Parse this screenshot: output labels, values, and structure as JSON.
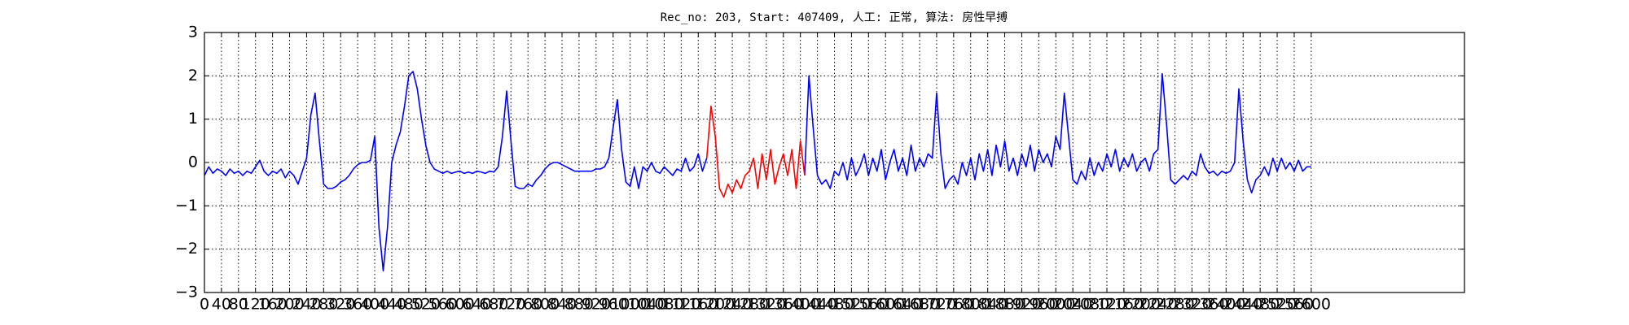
{
  "chart_data": {
    "type": "line",
    "title": "Rec_no: 203, Start: 407409, 人工: 正常, 算法: 房性早搏",
    "x": [
      0,
      10,
      20,
      30,
      40,
      50,
      60,
      70,
      80,
      90,
      100,
      110,
      120,
      130,
      140,
      150,
      160,
      170,
      180,
      190,
      200,
      210,
      220,
      230,
      240,
      250,
      260,
      270,
      280,
      290,
      300,
      310,
      320,
      330,
      340,
      350,
      360,
      370,
      380,
      390,
      400,
      410,
      420,
      430,
      440,
      450,
      460,
      470,
      480,
      490,
      500,
      510,
      520,
      530,
      540,
      550,
      560,
      570,
      580,
      590,
      600,
      610,
      620,
      630,
      640,
      650,
      660,
      670,
      680,
      690,
      700,
      710,
      720,
      730,
      740,
      750,
      760,
      770,
      780,
      790,
      800,
      810,
      820,
      830,
      840,
      850,
      860,
      870,
      880,
      890,
      900,
      910,
      920,
      930,
      940,
      950,
      960,
      970,
      980,
      990,
      1000,
      1010,
      1020,
      1030,
      1040,
      1050,
      1060,
      1070,
      1080,
      1090,
      1100,
      1110,
      1120,
      1130,
      1140,
      1150,
      1160,
      1170,
      1180,
      1190,
      1200,
      1210,
      1220,
      1230,
      1240,
      1250,
      1260,
      1270,
      1280,
      1290,
      1300,
      1310,
      1320,
      1330,
      1340,
      1350,
      1360,
      1370,
      1380,
      1390,
      1400,
      1410,
      1420,
      1430,
      1440,
      1450,
      1460,
      1470,
      1480,
      1490,
      1500,
      1510,
      1520,
      1530,
      1540,
      1550,
      1560,
      1570,
      1580,
      1590,
      1600,
      1610,
      1620,
      1630,
      1640,
      1650,
      1660,
      1670,
      1680,
      1690,
      1700,
      1710,
      1720,
      1730,
      1740,
      1750,
      1760,
      1770,
      1780,
      1790,
      1800,
      1810,
      1820,
      1830,
      1840,
      1850,
      1860,
      1870,
      1880,
      1890,
      1900,
      1910,
      1920,
      1930,
      1940,
      1950,
      1960,
      1970,
      1980,
      1990,
      2000,
      2010,
      2020,
      2030,
      2040,
      2050,
      2060,
      2070,
      2080,
      2090,
      2100,
      2110,
      2120,
      2130,
      2140,
      2150,
      2160,
      2170,
      2180,
      2190,
      2200,
      2210,
      2220,
      2230,
      2240,
      2250,
      2260,
      2270,
      2280,
      2290,
      2300,
      2310,
      2320,
      2330,
      2340,
      2350,
      2360,
      2370,
      2380,
      2390,
      2400,
      2410,
      2420,
      2430,
      2440,
      2450,
      2460,
      2470,
      2480,
      2490,
      2500,
      2510,
      2520,
      2530,
      2540,
      2550,
      2560,
      2570,
      2580,
      2590,
      2600
    ],
    "series": [
      {
        "color": "#0000ff",
        "values": [
          -0.3,
          -0.1,
          -0.25,
          -0.15,
          -0.2,
          -0.3,
          -0.15,
          -0.25,
          -0.2,
          -0.3,
          -0.2,
          -0.25,
          -0.1,
          0.05,
          -0.2,
          -0.3,
          -0.2,
          -0.25,
          -0.15,
          -0.35,
          -0.2,
          -0.3,
          -0.5,
          -0.2,
          0.1,
          1.1,
          1.6,
          0.5,
          -0.5,
          -0.6,
          -0.6,
          -0.55,
          -0.45,
          -0.4,
          -0.3,
          -0.15,
          -0.05,
          0,
          0,
          0.05,
          0.6,
          -1.5,
          -2.5,
          -1.5,
          0,
          0.4,
          0.7,
          1.3,
          2.0,
          2.1,
          1.7,
          1.0,
          0.4,
          0,
          -0.15,
          -0.2,
          -0.25,
          -0.2,
          -0.25,
          -0.22,
          -0.2,
          -0.25,
          -0.22,
          -0.25,
          -0.2,
          -0.22,
          -0.25,
          -0.2,
          -0.22,
          -0.1,
          0.6,
          1.65,
          0.5,
          -0.55,
          -0.6,
          -0.6,
          -0.5,
          -0.55,
          -0.4,
          -0.3,
          -0.15,
          -0.05,
          0,
          0,
          -0.05,
          -0.1,
          -0.15,
          -0.2,
          -0.2,
          -0.2,
          -0.2,
          -0.2,
          -0.15,
          -0.15,
          -0.1,
          0.1,
          0.8,
          1.45,
          0.3,
          -0.45,
          -0.55,
          -0.1,
          -0.6,
          -0.1,
          -0.2,
          0,
          -0.2,
          -0.25,
          -0.1,
          -0.2,
          -0.3,
          -0.15,
          -0.2,
          0.1,
          -0.2,
          -0.1,
          0.2,
          -0.2,
          0.1,
          null,
          null,
          null,
          null,
          null,
          null,
          null,
          null,
          null,
          null,
          null,
          null,
          null,
          null,
          null,
          null,
          null,
          null,
          null,
          null,
          null,
          null,
          -0.3,
          2.0,
          0.8,
          -0.3,
          -0.5,
          -0.4,
          -0.6,
          -0.2,
          -0.3,
          0,
          -0.4,
          0.1,
          -0.3,
          -0.1,
          0.2,
          -0.3,
          0.1,
          -0.2,
          0.3,
          -0.4,
          0,
          0.3,
          -0.2,
          0.1,
          -0.3,
          0.4,
          -0.2,
          0.1,
          -0.1,
          0.2,
          0.1,
          1.6,
          0.2,
          -0.6,
          -0.4,
          -0.3,
          -0.5,
          0,
          -0.3,
          0.1,
          -0.4,
          0.2,
          -0.2,
          0.3,
          -0.3,
          0.4,
          -0.1,
          0.5,
          -0.2,
          0.1,
          -0.3,
          0.2,
          -0.1,
          0.4,
          -0.2,
          0.3,
          0,
          0.2,
          -0.1,
          0.6,
          0.3,
          1.6,
          0.6,
          -0.4,
          -0.5,
          -0.2,
          -0.4,
          0.1,
          -0.3,
          0,
          -0.2,
          0.2,
          -0.1,
          0.3,
          -0.2,
          0.1,
          -0.1,
          0.2,
          -0.2,
          0,
          0.1,
          -0.2,
          0.2,
          0.3,
          2.05,
          0.9,
          -0.4,
          -0.5,
          -0.4,
          -0.3,
          -0.4,
          -0.2,
          -0.3,
          0.2,
          -0.1,
          -0.25,
          -0.2,
          -0.3,
          -0.2,
          -0.25,
          -0.2,
          0,
          1.7,
          0.5,
          -0.4,
          -0.7,
          -0.4,
          -0.3,
          -0.1,
          -0.3,
          0.1,
          -0.2,
          0.1,
          -0.15,
          0,
          -0.2,
          0.05,
          -0.2,
          -0.1,
          -0.1
        ]
      },
      {
        "color": "#ff0000",
        "values": [
          null,
          null,
          null,
          null,
          null,
          null,
          null,
          null,
          null,
          null,
          null,
          null,
          null,
          null,
          null,
          null,
          null,
          null,
          null,
          null,
          null,
          null,
          null,
          null,
          null,
          null,
          null,
          null,
          null,
          null,
          null,
          null,
          null,
          null,
          null,
          null,
          null,
          null,
          null,
          null,
          null,
          null,
          null,
          null,
          null,
          null,
          null,
          null,
          null,
          null,
          null,
          null,
          null,
          null,
          null,
          null,
          null,
          null,
          null,
          null,
          null,
          null,
          null,
          null,
          null,
          null,
          null,
          null,
          null,
          null,
          null,
          null,
          null,
          null,
          null,
          null,
          null,
          null,
          null,
          null,
          null,
          null,
          null,
          null,
          null,
          null,
          null,
          null,
          null,
          null,
          null,
          null,
          null,
          null,
          null,
          null,
          null,
          null,
          null,
          null,
          null,
          null,
          null,
          null,
          null,
          null,
          null,
          null,
          null,
          null,
          null,
          null,
          null,
          null,
          null,
          null,
          null,
          null,
          0.1,
          1.3,
          0.6,
          -0.6,
          -0.8,
          -0.5,
          -0.7,
          -0.4,
          -0.6,
          -0.3,
          -0.2,
          0.1,
          -0.6,
          0.2,
          -0.4,
          0.3,
          -0.5,
          -0.1,
          0.2,
          -0.3,
          0.3,
          -0.6,
          0.5,
          -0.3,
          null,
          null,
          null,
          null,
          null,
          null,
          null,
          null,
          null,
          null,
          null,
          null,
          null,
          null,
          null,
          null,
          null,
          null,
          null,
          null,
          null,
          null,
          null,
          null,
          null,
          null,
          null,
          null,
          null,
          null,
          null,
          null,
          null,
          null,
          null,
          null,
          null,
          null,
          null,
          null,
          null,
          null,
          null,
          null,
          null,
          null,
          null,
          null,
          null,
          null,
          null,
          null,
          null,
          null,
          null,
          null,
          null,
          null,
          null,
          null,
          null,
          null,
          null,
          null,
          null,
          null,
          null,
          null,
          null,
          null,
          null,
          null,
          null,
          null,
          null,
          null,
          null,
          null,
          null,
          null,
          null,
          null,
          null,
          null,
          null,
          null,
          null,
          null,
          null,
          null,
          null,
          null,
          null,
          null,
          null,
          null,
          null,
          null,
          null,
          null,
          null,
          null,
          null,
          null,
          null,
          null,
          null,
          null,
          null,
          null,
          null,
          null,
          null,
          null,
          null,
          null,
          null,
          null,
          null
        ]
      }
    ],
    "xlim": [
      0,
      2960
    ],
    "xticks": [
      0,
      40,
      80,
      120,
      160,
      200,
      240,
      280,
      320,
      360,
      400,
      440,
      480,
      520,
      560,
      600,
      640,
      680,
      720,
      760,
      800,
      840,
      880,
      920,
      960,
      1000,
      1040,
      1080,
      1120,
      1160,
      1200,
      1240,
      1280,
      1320,
      1360,
      1400,
      1440,
      1480,
      1520,
      1560,
      1600,
      1640,
      1680,
      1720,
      1760,
      1800,
      1840,
      1880,
      1920,
      1960,
      2000,
      2040,
      2080,
      2120,
      2160,
      2200,
      2240,
      2280,
      2320,
      2360,
      2400,
      2440,
      2480,
      2520,
      2560,
      2600
    ],
    "ylim": [
      -3,
      3
    ],
    "yticks": [
      {
        "value": -3,
        "label": "−3"
      },
      {
        "value": -2,
        "label": "−2"
      },
      {
        "value": -1,
        "label": "−1"
      },
      0,
      1,
      2,
      3
    ],
    "grid": true
  }
}
